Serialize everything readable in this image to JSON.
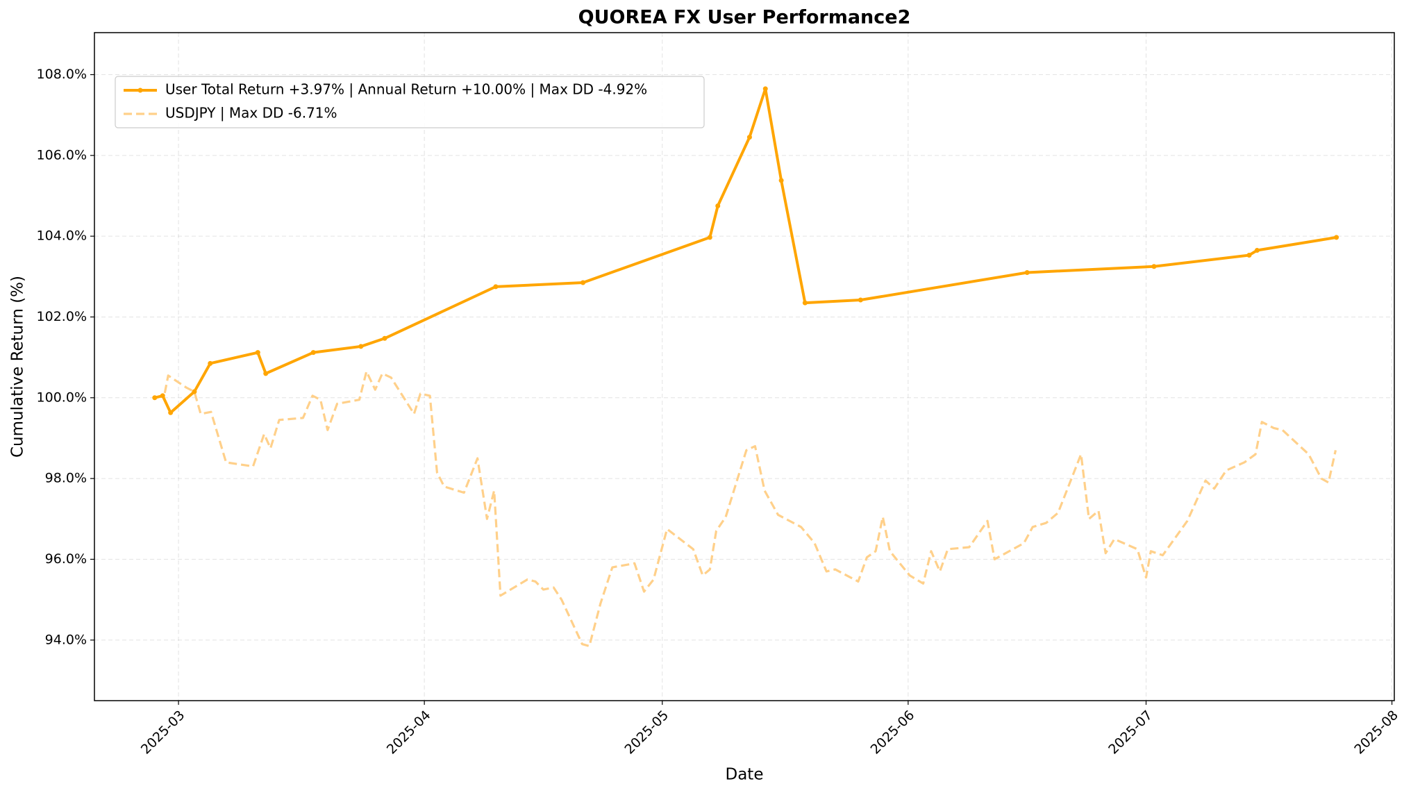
{
  "chart_data": {
    "type": "line",
    "title": "QUOREA FX User Performance2",
    "xlabel": "Date",
    "ylabel": "Cumulative Return (%)",
    "xlim": [
      20137.4,
      20301.3
    ],
    "xticks": [
      {
        "value": 20148,
        "label": "2025-03"
      },
      {
        "value": 20179,
        "label": "2025-04"
      },
      {
        "value": 20209,
        "label": "2025-05"
      },
      {
        "value": 20240,
        "label": "2025-06"
      },
      {
        "value": 20270,
        "label": "2025-07"
      },
      {
        "value": 20301,
        "label": "2025-08"
      }
    ],
    "ylim": [
      92.5,
      109.04
    ],
    "yticks": [
      {
        "value": 94,
        "label": "94.0%"
      },
      {
        "value": 96,
        "label": "96.0%"
      },
      {
        "value": 98,
        "label": "98.0%"
      },
      {
        "value": 100,
        "label": "100.0%"
      },
      {
        "value": 102,
        "label": "102.0%"
      },
      {
        "value": 104,
        "label": "104.0%"
      },
      {
        "value": 106,
        "label": "106.0%"
      },
      {
        "value": 108,
        "label": "108.0%"
      }
    ],
    "grid": true,
    "legend": "upper left",
    "series": [
      {
        "name": "User Total Return +3.97% | Annual Return +10.00% | Max DD -4.92%",
        "color": "#ffa500",
        "linestyle": "solid",
        "marker": true,
        "x": [
          20145,
          20146,
          20147,
          20150,
          20152,
          20158,
          20159,
          20165,
          20171,
          20174,
          20188,
          20199,
          20215,
          20216,
          20220,
          20222,
          20224,
          20227,
          20234,
          20255,
          20271,
          20283,
          20284,
          20294
        ],
        "values": [
          100.0,
          100.05,
          99.63,
          100.15,
          100.85,
          101.12,
          100.6,
          101.12,
          101.27,
          101.47,
          102.75,
          102.85,
          103.97,
          104.75,
          106.45,
          107.65,
          105.38,
          102.35,
          102.42,
          103.1,
          103.25,
          103.53,
          103.65,
          103.97
        ]
      },
      {
        "name": "USDJPY | Max DD -6.71%",
        "color": "#ffd08a",
        "linestyle": "dashed",
        "marker": false,
        "x": [
          20145.0,
          20146.2,
          20146.7,
          20149.0,
          20150.0,
          20150.8,
          20152.1,
          20154.0,
          20155.7,
          20157.4,
          20158.8,
          20159.6,
          20160.7,
          20163.7,
          20164.9,
          20165.9,
          20166.8,
          20168.0,
          20170.8,
          20171.7,
          20172.8,
          20173.7,
          20174.8,
          20177.7,
          20178.5,
          20179.7,
          20180.6,
          20181.5,
          20184.0,
          20185.7,
          20186.9,
          20187.8,
          20188.6,
          20192.0,
          20193.0,
          20194.0,
          20195.3,
          20196.3,
          20198.9,
          20199.8,
          20201.2,
          20202.7,
          20205.5,
          20206.7,
          20207.9,
          20209.6,
          20212.9,
          20214.1,
          20215.0,
          20215.8,
          20217.0,
          20219.6,
          20220.7,
          20221.9,
          20223.6,
          20226.5,
          20228.2,
          20229.7,
          20230.8,
          20233.7,
          20234.8,
          20235.9,
          20236.8,
          20237.7,
          20240.2,
          20241.9,
          20242.9,
          20244.0,
          20245.0,
          20247.7,
          20250.0,
          20250.9,
          20254.6,
          20255.7,
          20257.4,
          20258.9,
          20261.8,
          20262.8,
          20264.0,
          20264.9,
          20266.0,
          20268.9,
          20270.0,
          20270.6,
          20272.1,
          20275.2,
          20277.5,
          20278.6,
          20280.1,
          20282.4,
          20283.8,
          20284.6,
          20286.1,
          20287.2,
          20290.5,
          20292.1,
          20293.0,
          20293.9
        ],
        "values": [
          100.0,
          100.05,
          100.55,
          100.25,
          100.15,
          99.6,
          99.65,
          98.4,
          98.35,
          98.3,
          99.1,
          98.75,
          99.45,
          99.5,
          100.05,
          99.95,
          99.2,
          99.85,
          99.95,
          100.65,
          100.2,
          100.6,
          100.5,
          99.6,
          100.1,
          100.05,
          98.15,
          97.8,
          97.65,
          98.5,
          97.0,
          97.7,
          95.1,
          95.5,
          95.45,
          95.25,
          95.3,
          95.0,
          93.9,
          93.85,
          94.9,
          95.8,
          95.9,
          95.2,
          95.5,
          96.75,
          96.25,
          95.6,
          95.75,
          96.7,
          97.05,
          98.7,
          98.8,
          97.7,
          97.1,
          96.8,
          96.4,
          95.7,
          95.75,
          95.45,
          96.05,
          96.2,
          97.05,
          96.2,
          95.6,
          95.4,
          96.2,
          95.7,
          96.25,
          96.3,
          96.95,
          96.0,
          96.4,
          96.8,
          96.9,
          97.15,
          98.6,
          97.0,
          97.2,
          96.15,
          96.5,
          96.25,
          95.55,
          96.2,
          96.1,
          96.95,
          97.95,
          97.75,
          98.2,
          98.4,
          98.6,
          99.4,
          99.25,
          99.2,
          98.6,
          98.0,
          97.9,
          98.7
        ]
      }
    ]
  }
}
